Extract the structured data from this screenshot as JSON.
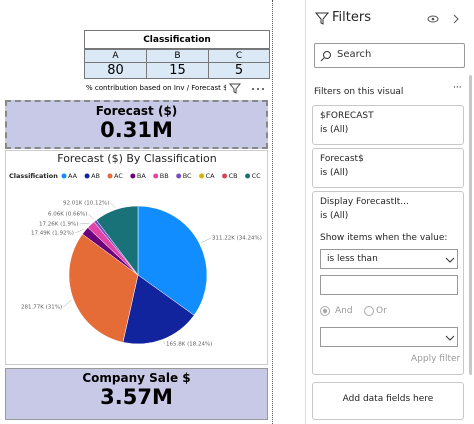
{
  "table": {
    "title": "Classification",
    "columns": [
      "A",
      "B",
      "C"
    ],
    "rows": [
      [
        80,
        15,
        5
      ]
    ],
    "footer": "% contribution based on Inv / Forecast $"
  },
  "cards": [
    {
      "label": "Forecast ($)",
      "value": "0.31M"
    },
    {
      "label": "Company Sale $",
      "value": "3.57M"
    }
  ],
  "chart_data": {
    "type": "pie",
    "title": "Forecast ($) By Classification",
    "legend_title": "Classification",
    "categories": [
      "AA",
      "AB",
      "AC",
      "BA",
      "BB",
      "BC",
      "CA",
      "CB",
      "CC"
    ],
    "values": [
      311220,
      165800,
      281770,
      17490,
      17260,
      6060,
      null,
      null,
      92010
    ],
    "value_labels": [
      "311.22K (34.24%)",
      "165.8K (18.24%)",
      "281.77K (31%)",
      "17.49K (1.92%)",
      "17.26K (1.9%)",
      "6.06K (0.66%)",
      null,
      null,
      "92.01K (10.12%)"
    ],
    "colors": [
      "#118dff",
      "#12239e",
      "#e66c37",
      "#6b007b",
      "#e044a7",
      "#744ec2",
      "#d9b300",
      "#d64550",
      "#197278"
    ]
  },
  "filters": {
    "title": "Filters",
    "search": "Search",
    "section": "Filters on this visual",
    "items": [
      {
        "name": "$FORECAST",
        "state": "is (All)"
      },
      {
        "name": "Forecast$",
        "state": "is (All)"
      },
      {
        "name": "Display ForecastIt...",
        "state": "is (All)"
      }
    ],
    "show_items": "Show items when the value:",
    "condition": "is less than",
    "and": "And",
    "or": "Or",
    "apply": "Apply filter",
    "add_fields": "Add data fields here"
  }
}
